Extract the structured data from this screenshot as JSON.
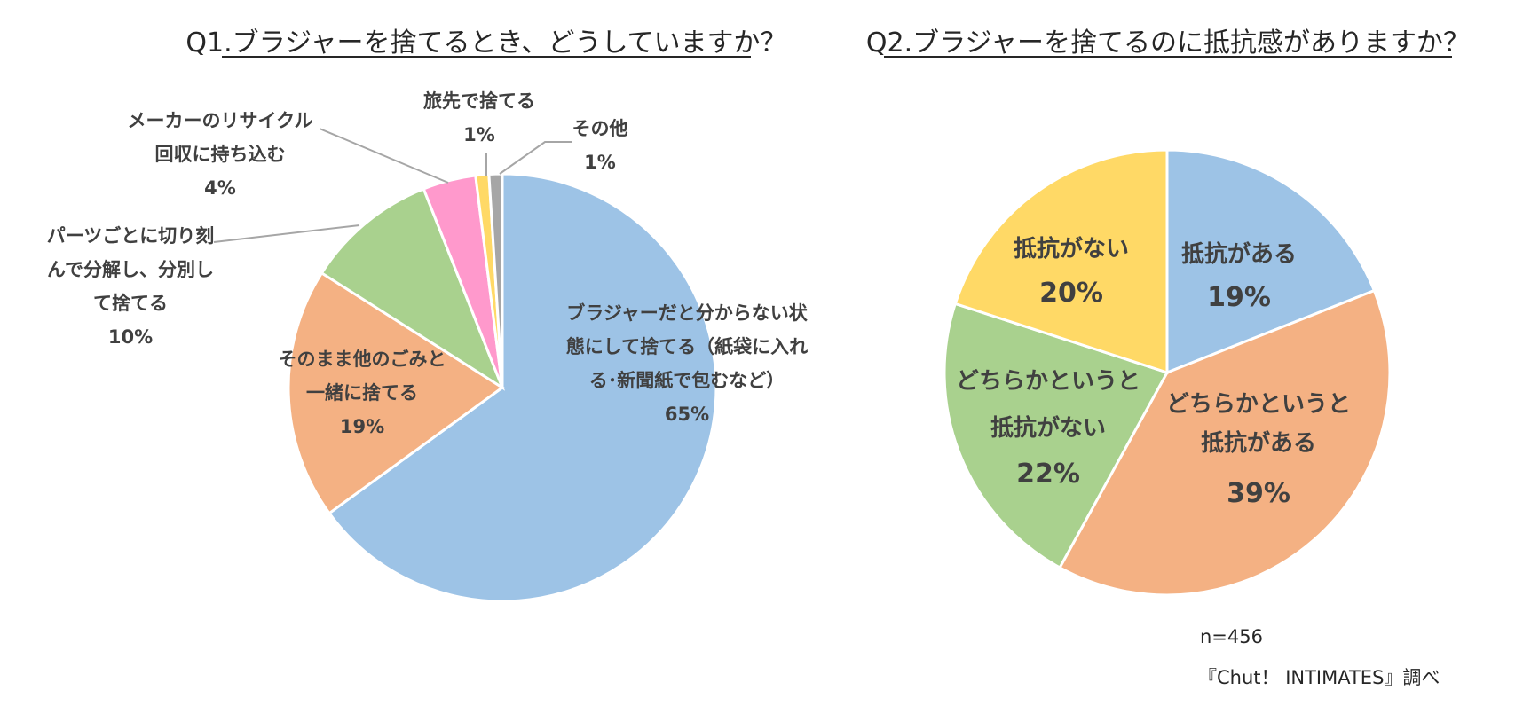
{
  "chart_data": [
    {
      "type": "pie",
      "title": "Q1.ブラジャーを捨てるとき、どうしていますか？",
      "slices": [
        {
          "label_lines": [
            "ブラジャーだと分からない状",
            "態にして捨てる（紙袋に入れ",
            "る･新聞紙で包むなど）"
          ],
          "label": "ブラジャーだと分からない状態にして捨てる（紙袋に入れる･新聞紙で包むなど）",
          "value": 65,
          "value_label": "65%",
          "color": "#9DC3E6"
        },
        {
          "label_lines": [
            "そのまま他のごみと",
            "一緒に捨てる"
          ],
          "label": "そのまま他のごみと一緒に捨てる",
          "value": 19,
          "value_label": "19%",
          "color": "#F4B183"
        },
        {
          "label_lines": [
            "パーツごとに切り刻",
            "んで分解し、分別し",
            "て捨てる"
          ],
          "label": "パーツごとに切り刻んで分解し、分別して捨てる",
          "value": 10,
          "value_label": "10%",
          "color": "#A9D18E"
        },
        {
          "label_lines": [
            "メーカーのリサイクル",
            "回収に持ち込む"
          ],
          "label": "メーカーのリサイクル回収に持ち込む",
          "value": 4,
          "value_label": "4%",
          "color": "#FF99CC"
        },
        {
          "label_lines": [
            "旅先で捨てる"
          ],
          "label": "旅先で捨てる",
          "value": 1,
          "value_label": "1%",
          "color": "#FFD966"
        },
        {
          "label_lines": [
            "その他"
          ],
          "label": "その他",
          "value": 1,
          "value_label": "1%",
          "color": "#A6A6A6"
        }
      ]
    },
    {
      "type": "pie",
      "title": "Q2.ブラジャーを捨てるのに抵抗感がありますか？",
      "slices": [
        {
          "label_lines": [
            "抵抗がある"
          ],
          "label": "抵抗がある",
          "value": 19,
          "value_label": "19%",
          "color": "#9DC3E6"
        },
        {
          "label_lines": [
            "どちらかというと",
            "抵抗がある"
          ],
          "label": "どちらかというと抵抗がある",
          "value": 39,
          "value_label": "39%",
          "color": "#F4B183"
        },
        {
          "label_lines": [
            "どちらかというと",
            "抵抗がない"
          ],
          "label": "どちらかというと抵抗がない",
          "value": 22,
          "value_label": "22%",
          "color": "#A9D18E"
        },
        {
          "label_lines": [
            "抵抗がない"
          ],
          "label": "抵抗がない",
          "value": 20,
          "value_label": "20%",
          "color": "#FFD966"
        }
      ]
    }
  ],
  "footnote": {
    "sample": "n=456",
    "source": "『Chut！ INTIMATES』調べ"
  }
}
